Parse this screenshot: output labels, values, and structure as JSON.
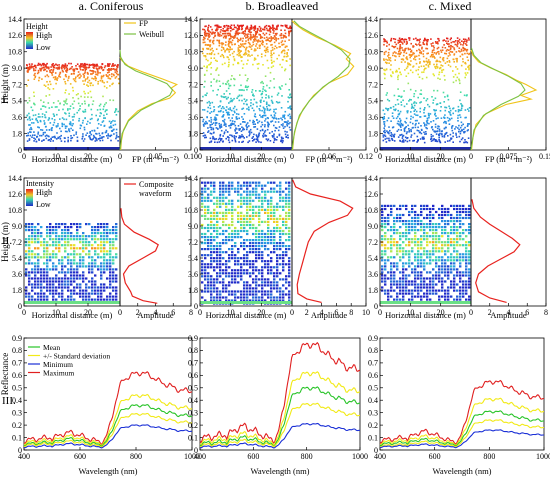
{
  "column_titles": [
    "a. Coniferous",
    "b. Broadleaved",
    "c. Mixed"
  ],
  "row_labels": [
    "I.",
    "II.",
    "III."
  ],
  "colors": {
    "fp_line": "#f0c419",
    "weibull_line": "#7cc242",
    "waveform_line": "#e8231f",
    "mean": "#29c429",
    "std": "#f2ea18",
    "minimum": "#1a2fd6",
    "maximum": "#e02020",
    "point_high": "#e41a1c",
    "point_low": "#1f2ccc",
    "ground": "#1e2aa8"
  },
  "chart_data": [
    {
      "type": "scatter",
      "panel": "I.a",
      "xlabel": "Horizontal distance (m)",
      "ylabel": "Height (m)",
      "xlim": [
        0,
        30
      ],
      "ylim": [
        0,
        14.4
      ],
      "x_ticks": [
        "0",
        "10",
        "20",
        "30"
      ],
      "y_ticks": [
        "0",
        "1.8",
        "3.6",
        "5.4",
        "7.2",
        "9.0",
        "10.8",
        "12.6",
        "14.4"
      ],
      "colorbar": {
        "title": "Height",
        "high": "High",
        "low": "Low"
      },
      "canopy": {
        "top": 9.6,
        "center": 6.8,
        "bottom": 1.0,
        "density": 0.85
      }
    },
    {
      "type": "line",
      "panel": "I.a-profile",
      "xlabel": "FP (m⁻¹·m⁻²)",
      "x_ticks": [
        "0",
        "0.05",
        "0.10"
      ],
      "xlim": [
        0,
        0.1
      ],
      "ylim": [
        0,
        14.4
      ],
      "legend": [
        "FP",
        "Weibull"
      ],
      "series": [
        {
          "name": "FP",
          "points": [
            [
              0.001,
              0
            ],
            [
              0.002,
              1.0
            ],
            [
              0.005,
              2.2
            ],
            [
              0.012,
              3.3
            ],
            [
              0.025,
              4.3
            ],
            [
              0.045,
              5.1
            ],
            [
              0.07,
              5.7
            ],
            [
              0.078,
              6.3
            ],
            [
              0.072,
              6.8
            ],
            [
              0.08,
              7.2
            ],
            [
              0.06,
              7.8
            ],
            [
              0.035,
              8.5
            ],
            [
              0.012,
              9.2
            ],
            [
              0.003,
              9.8
            ],
            [
              0.0,
              10.2
            ]
          ]
        },
        {
          "name": "Weibull",
          "points": [
            [
              0.0,
              0
            ],
            [
              0.003,
              1.8
            ],
            [
              0.012,
              3.2
            ],
            [
              0.03,
              4.4
            ],
            [
              0.055,
              5.4
            ],
            [
              0.07,
              6.0
            ],
            [
              0.074,
              6.6
            ],
            [
              0.066,
              7.3
            ],
            [
              0.045,
              8.0
            ],
            [
              0.022,
              8.7
            ],
            [
              0.007,
              9.4
            ],
            [
              0.001,
              10.2
            ],
            [
              0.0,
              11
            ]
          ]
        }
      ]
    },
    {
      "type": "scatter",
      "panel": "I.b",
      "xlabel": "Horizontal distance (m)",
      "xlim": [
        0,
        30
      ],
      "ylim": [
        0,
        14.4
      ],
      "x_ticks": [
        "0",
        "10",
        "20",
        "30"
      ],
      "y_ticks": [
        "0",
        "1.8",
        "3.6",
        "5.4",
        "7.2",
        "9.0",
        "10.8",
        "12.6",
        "14.4"
      ],
      "canopy": {
        "top": 13.8,
        "center": 8.6,
        "bottom": 0.9,
        "density": 1.35
      }
    },
    {
      "type": "line",
      "panel": "I.b-profile",
      "xlabel": "FP (m⁻¹·m⁻²)",
      "x_ticks": [
        "0",
        "0.06",
        "0.12"
      ],
      "xlim": [
        0,
        0.12
      ],
      "ylim": [
        0,
        14.4
      ],
      "series": [
        {
          "name": "FP",
          "points": [
            [
              0.001,
              0
            ],
            [
              0.003,
              1.5
            ],
            [
              0.008,
              3.0
            ],
            [
              0.018,
              4.5
            ],
            [
              0.035,
              6.0
            ],
            [
              0.06,
              7.4
            ],
            [
              0.09,
              8.3
            ],
            [
              0.1,
              9.2
            ],
            [
              0.088,
              10.0
            ],
            [
              0.095,
              10.6
            ],
            [
              0.07,
              11.5
            ],
            [
              0.04,
              12.4
            ],
            [
              0.018,
              13.2
            ],
            [
              0.004,
              13.9
            ],
            [
              0.0,
              14.2
            ]
          ]
        },
        {
          "name": "Weibull",
          "points": [
            [
              0.0,
              0
            ],
            [
              0.004,
              2.0
            ],
            [
              0.012,
              3.8
            ],
            [
              0.028,
              5.4
            ],
            [
              0.05,
              6.9
            ],
            [
              0.075,
              8.1
            ],
            [
              0.092,
              9.2
            ],
            [
              0.094,
              10.0
            ],
            [
              0.08,
              11.0
            ],
            [
              0.055,
              12.0
            ],
            [
              0.03,
              12.9
            ],
            [
              0.012,
              13.6
            ],
            [
              0.003,
              14.2
            ]
          ]
        }
      ]
    },
    {
      "type": "scatter",
      "panel": "I.c",
      "xlabel": "Horizontal distance (m)",
      "xlim": [
        0,
        30
      ],
      "ylim": [
        0,
        14.4
      ],
      "x_ticks": [
        "0",
        "10",
        "20",
        "30"
      ],
      "y_ticks": [
        "0",
        "1.8",
        "3.6",
        "5.4",
        "7.2",
        "9.0",
        "10.8",
        "12.6",
        "14.4"
      ],
      "canopy": {
        "top": 12.4,
        "center": 7.0,
        "bottom": 0.9,
        "density": 1.0
      }
    },
    {
      "type": "line",
      "panel": "I.c-profile",
      "xlabel": "FP (m⁻¹·m⁻²)",
      "x_ticks": [
        "0",
        "0.075",
        "0.15"
      ],
      "xlim": [
        0,
        0.15
      ],
      "ylim": [
        0,
        14.4
      ],
      "series": [
        {
          "name": "FP",
          "points": [
            [
              0.001,
              0
            ],
            [
              0.004,
              1.4
            ],
            [
              0.01,
              2.8
            ],
            [
              0.03,
              4.0
            ],
            [
              0.07,
              5.0
            ],
            [
              0.12,
              5.6
            ],
            [
              0.1,
              6.0
            ],
            [
              0.13,
              6.6
            ],
            [
              0.11,
              7.2
            ],
            [
              0.09,
              7.7
            ],
            [
              0.07,
              8.3
            ],
            [
              0.04,
              9.0
            ],
            [
              0.015,
              9.7
            ],
            [
              0.004,
              10.4
            ],
            [
              0.0,
              11
            ]
          ]
        },
        {
          "name": "Weibull",
          "points": [
            [
              0.0,
              0
            ],
            [
              0.006,
              2.2
            ],
            [
              0.025,
              3.8
            ],
            [
              0.06,
              5.0
            ],
            [
              0.095,
              5.9
            ],
            [
              0.108,
              6.6
            ],
            [
              0.1,
              7.3
            ],
            [
              0.075,
              8.1
            ],
            [
              0.045,
              8.9
            ],
            [
              0.02,
              9.6
            ],
            [
              0.006,
              10.4
            ],
            [
              0.001,
              11.2
            ]
          ]
        }
      ]
    },
    {
      "type": "heatmap",
      "panel": "II.a",
      "xlabel": "Horizontal distance (m)",
      "ylabel": "Height (m)",
      "xlim": [
        0,
        30
      ],
      "ylim": [
        0,
        14.4
      ],
      "x_ticks": [
        "0",
        "10",
        "20",
        "30"
      ],
      "y_ticks": [
        "0",
        "1.8",
        "3.6",
        "5.4",
        "7.2",
        "9.0",
        "10.8",
        "12.6",
        "14.4"
      ],
      "colorbar": {
        "title": "Intensity",
        "high": "High",
        "low": "Low"
      },
      "canopy": {
        "top": 9.4,
        "center": 6.6,
        "bottom": 0.5
      }
    },
    {
      "type": "line",
      "panel": "II.a-waveform",
      "xlabel": "Amplitude",
      "x_ticks": [
        "0",
        "2",
        "4",
        "6",
        "8"
      ],
      "xlim": [
        0,
        8
      ],
      "ylim": [
        0,
        14.4
      ],
      "legend": [
        "Composite waveform"
      ],
      "series": [
        {
          "name": "Composite waveform",
          "points": [
            [
              0.1,
              11
            ],
            [
              0.2,
              10
            ],
            [
              0.5,
              9.2
            ],
            [
              1.6,
              8.3
            ],
            [
              3.3,
              7.5
            ],
            [
              4.3,
              6.9
            ],
            [
              4.0,
              6.2
            ],
            [
              2.6,
              5.4
            ],
            [
              1.0,
              4.5
            ],
            [
              0.4,
              3.6
            ],
            [
              0.6,
              2.6
            ],
            [
              1.2,
              1.6
            ],
            [
              1.4,
              1.1
            ],
            [
              2.6,
              0.6
            ],
            [
              4.2,
              0.3
            ]
          ]
        }
      ]
    },
    {
      "type": "heatmap",
      "panel": "II.b",
      "xlabel": "Horizontal distance (m)",
      "xlim": [
        0,
        30
      ],
      "ylim": [
        0,
        14.4
      ],
      "x_ticks": [
        "0",
        "10",
        "20",
        "30"
      ],
      "y_ticks": [
        "0",
        "1.8",
        "3.6",
        "5.4",
        "7.2",
        "9.0",
        "10.8",
        "12.6",
        "14.4"
      ],
      "canopy": {
        "top": 14.0,
        "center": 10.2,
        "bottom": 0.4
      }
    },
    {
      "type": "line",
      "panel": "II.b-waveform",
      "xlabel": "Amplitude",
      "x_ticks": [
        "0",
        "2",
        "4",
        "6",
        "8",
        "10"
      ],
      "xlim": [
        0,
        10
      ],
      "ylim": [
        0,
        14.4
      ],
      "series": [
        {
          "name": "Composite waveform",
          "points": [
            [
              0.1,
              14.2
            ],
            [
              0.5,
              13.4
            ],
            [
              2.5,
              12.6
            ],
            [
              6.5,
              11.8
            ],
            [
              8.2,
              11.0
            ],
            [
              7.5,
              10.2
            ],
            [
              5.0,
              9.4
            ],
            [
              3.0,
              8.4
            ],
            [
              2.2,
              7.2
            ],
            [
              1.8,
              6.0
            ],
            [
              1.4,
              4.8
            ],
            [
              1.0,
              3.6
            ],
            [
              0.7,
              2.4
            ],
            [
              0.8,
              1.4
            ],
            [
              2.0,
              0.8
            ],
            [
              4.0,
              0.4
            ]
          ]
        }
      ]
    },
    {
      "type": "heatmap",
      "panel": "II.c",
      "xlabel": "Horizontal distance (m)",
      "xlim": [
        0,
        30
      ],
      "ylim": [
        0,
        14.4
      ],
      "x_ticks": [
        "0",
        "10",
        "20",
        "30"
      ],
      "y_ticks": [
        "0",
        "1.8",
        "3.6",
        "5.4",
        "7.2",
        "9.0",
        "10.8",
        "12.6",
        "14.4"
      ],
      "canopy": {
        "top": 11.4,
        "center": 7.2,
        "bottom": 0.5
      }
    },
    {
      "type": "line",
      "panel": "II.c-waveform",
      "xlabel": "Amplitude",
      "x_ticks": [
        "0",
        "2",
        "4",
        "6",
        "8"
      ],
      "xlim": [
        0,
        8
      ],
      "ylim": [
        0,
        14.4
      ],
      "series": [
        {
          "name": "Composite waveform",
          "points": [
            [
              0.1,
              12
            ],
            [
              0.3,
              11
            ],
            [
              1.0,
              10
            ],
            [
              2.0,
              9.2
            ],
            [
              3.2,
              8.4
            ],
            [
              4.4,
              7.6
            ],
            [
              5.2,
              6.9
            ],
            [
              4.6,
              6.1
            ],
            [
              3.2,
              5.3
            ],
            [
              1.8,
              4.5
            ],
            [
              0.8,
              3.6
            ],
            [
              0.5,
              2.6
            ],
            [
              0.8,
              1.6
            ],
            [
              2.0,
              0.9
            ],
            [
              3.8,
              0.4
            ]
          ]
        }
      ]
    },
    {
      "type": "line",
      "panel": "III.a",
      "xlabel": "Wavelength (nm)",
      "ylabel": "Reflectance",
      "xlim": [
        400,
        1000
      ],
      "ylim": [
        0,
        0.9
      ],
      "x_ticks": [
        "400",
        "600",
        "800",
        "1000"
      ],
      "y_ticks": [
        "0",
        "0.1",
        "0.2",
        "0.3",
        "0.4",
        "0.5",
        "0.6",
        "0.7",
        "0.8",
        "0.9"
      ],
      "legend": [
        "Mean",
        "+/- Standard deviation",
        "Minimum",
        "Maximum"
      ],
      "red_edge_nm": 720,
      "series": [
        {
          "name": "Maximum",
          "key": "maximum",
          "vis": 0.09,
          "green": 0.14,
          "red": 0.07,
          "nir": 0.62
        },
        {
          "name": "+ Standard deviation",
          "key": "std",
          "vis": 0.07,
          "green": 0.11,
          "red": 0.055,
          "nir": 0.44
        },
        {
          "name": "Mean",
          "key": "mean",
          "vis": 0.055,
          "green": 0.09,
          "red": 0.045,
          "nir": 0.36
        },
        {
          "name": "- Standard deviation",
          "key": "std",
          "vis": 0.045,
          "green": 0.07,
          "red": 0.035,
          "nir": 0.29
        },
        {
          "name": "Minimum",
          "key": "minimum",
          "vis": 0.03,
          "green": 0.05,
          "red": 0.025,
          "nir": 0.2
        }
      ]
    },
    {
      "type": "line",
      "panel": "III.b",
      "xlabel": "Wavelength (nm)",
      "xlim": [
        400,
        1000
      ],
      "ylim": [
        0,
        0.9
      ],
      "x_ticks": [
        "400",
        "600",
        "800",
        "1000"
      ],
      "y_ticks": [
        "0",
        "0.1",
        "0.2",
        "0.3",
        "0.4",
        "0.5",
        "0.6",
        "0.7",
        "0.8",
        "0.9"
      ],
      "red_edge_nm": 720,
      "series": [
        {
          "name": "Maximum",
          "key": "maximum",
          "vis": 0.11,
          "green": 0.19,
          "red": 0.09,
          "nir": 0.85
        },
        {
          "name": "+ Standard deviation",
          "key": "std",
          "vis": 0.08,
          "green": 0.13,
          "red": 0.065,
          "nir": 0.62
        },
        {
          "name": "Mean",
          "key": "mean",
          "vis": 0.06,
          "green": 0.1,
          "red": 0.05,
          "nir": 0.5
        },
        {
          "name": "- Standard deviation",
          "key": "std",
          "vis": 0.045,
          "green": 0.075,
          "red": 0.04,
          "nir": 0.37
        },
        {
          "name": "Minimum",
          "key": "minimum",
          "vis": 0.03,
          "green": 0.05,
          "red": 0.025,
          "nir": 0.21
        }
      ]
    },
    {
      "type": "line",
      "panel": "III.c",
      "xlabel": "Wavelength (nm)",
      "xlim": [
        400,
        1000
      ],
      "ylim": [
        0,
        0.9
      ],
      "x_ticks": [
        "400",
        "600",
        "800",
        "1000"
      ],
      "y_ticks": [
        "0",
        "0.1",
        "0.2",
        "0.3",
        "0.4",
        "0.5",
        "0.6",
        "0.7",
        "0.8",
        "0.9"
      ],
      "red_edge_nm": 720,
      "series": [
        {
          "name": "Maximum",
          "key": "maximum",
          "vis": 0.09,
          "green": 0.15,
          "red": 0.07,
          "nir": 0.55
        },
        {
          "name": "+ Standard deviation",
          "key": "std",
          "vis": 0.07,
          "green": 0.11,
          "red": 0.055,
          "nir": 0.41
        },
        {
          "name": "Mean",
          "key": "mean",
          "vis": 0.055,
          "green": 0.085,
          "red": 0.045,
          "nir": 0.31
        },
        {
          "name": "- Standard deviation",
          "key": "std",
          "vis": 0.04,
          "green": 0.065,
          "red": 0.035,
          "nir": 0.24
        },
        {
          "name": "Minimum",
          "key": "minimum",
          "vis": 0.03,
          "green": 0.045,
          "red": 0.025,
          "nir": 0.16
        }
      ]
    }
  ]
}
